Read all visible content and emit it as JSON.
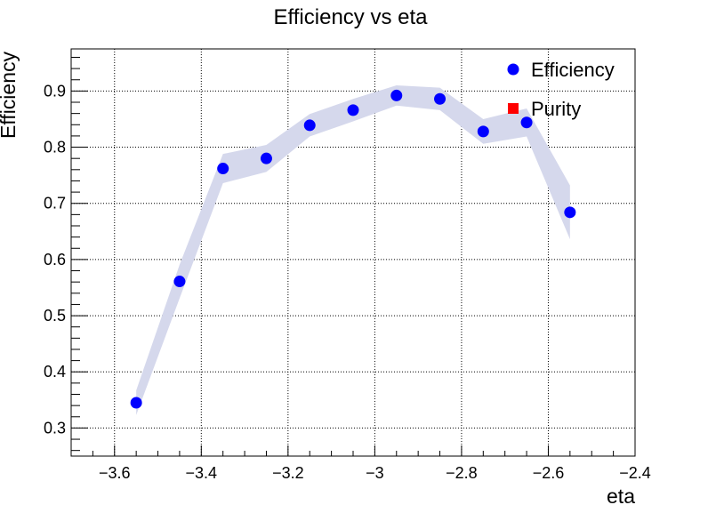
{
  "chart_data": {
    "type": "scatter",
    "title": "Efficiency vs eta",
    "xlabel": "eta",
    "ylabel": "Efficiency",
    "xlim": [
      -3.7,
      -2.4
    ],
    "ylim": [
      0.25,
      0.975
    ],
    "grid": true,
    "x_ticks": [
      -3.6,
      -3.4,
      -3.2,
      -3.0,
      -2.8,
      -2.6,
      -2.4
    ],
    "x_tick_labels": [
      "−3.6",
      "−3.4",
      "−3.2",
      "−3",
      "−2.8",
      "−2.6",
      "−2.4"
    ],
    "y_ticks": [
      0.3,
      0.4,
      0.5,
      0.6,
      0.7,
      0.8,
      0.9
    ],
    "y_tick_labels": [
      "0.3",
      "0.4",
      "0.5",
      "0.6",
      "0.7",
      "0.8",
      "0.9"
    ],
    "legend_position": "top-right",
    "series": [
      {
        "name": "Efficiency",
        "marker": "circle",
        "color": "#0000ff",
        "band_color": "#d5d8ec",
        "x": [
          -3.55,
          -3.45,
          -3.35,
          -3.25,
          -3.15,
          -3.05,
          -2.95,
          -2.85,
          -2.75,
          -2.65,
          -2.55
        ],
        "y": [
          0.345,
          0.561,
          0.762,
          0.78,
          0.839,
          0.866,
          0.892,
          0.886,
          0.828,
          0.844,
          0.684
        ],
        "y_err": [
          0.022,
          0.03,
          0.026,
          0.024,
          0.02,
          0.02,
          0.018,
          0.02,
          0.022,
          0.025,
          0.048
        ]
      },
      {
        "name": "Purity",
        "marker": "square",
        "color": "#ff0000",
        "x": [],
        "y": []
      }
    ]
  }
}
